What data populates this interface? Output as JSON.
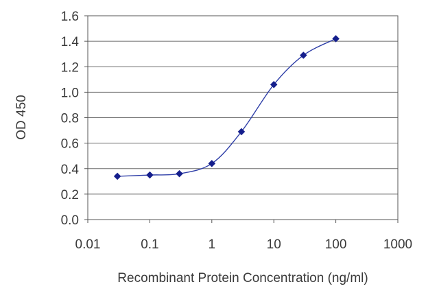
{
  "chart_data": {
    "type": "line",
    "xscale": "log",
    "xlabel": "Recombinant Protein Concentration (ng/ml)",
    "ylabel": "OD 450",
    "xlim": [
      0.01,
      1000
    ],
    "ylim": [
      0.0,
      1.6
    ],
    "xticks": [
      0.01,
      0.1,
      1,
      10,
      100,
      1000
    ],
    "xtick_labels": [
      "0.01",
      "0.1",
      "1",
      "10",
      "100",
      "1000"
    ],
    "yticks": [
      0.0,
      0.2,
      0.4,
      0.6,
      0.8,
      1.0,
      1.2,
      1.4,
      1.6
    ],
    "ytick_labels": [
      "0.0",
      "0.2",
      "0.4",
      "0.6",
      "0.8",
      "1.0",
      "1.2",
      "1.4",
      "1.6"
    ],
    "grid": "horizontal",
    "legend": "none",
    "series": [
      {
        "x": [
          0.03,
          0.1,
          0.3,
          1,
          3,
          10,
          30,
          100
        ],
        "y": [
          0.34,
          0.35,
          0.36,
          0.44,
          0.69,
          1.06,
          1.29,
          1.42
        ]
      }
    ],
    "colors": {
      "line": "#2f3fa8",
      "marker": "#141e8c",
      "grid": "#6a6a6a",
      "frame": "#555555",
      "plot_background": "#ffffff"
    }
  }
}
